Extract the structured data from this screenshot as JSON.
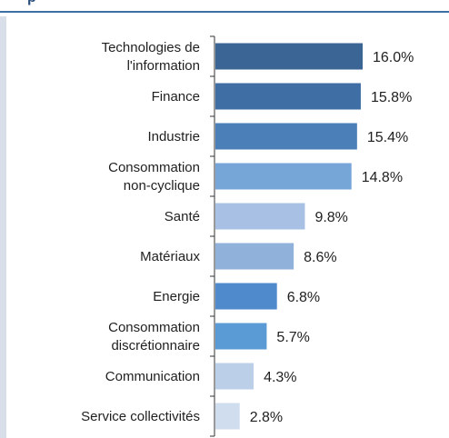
{
  "chart_data": {
    "type": "bar",
    "orientation": "horizontal",
    "categories": [
      "Technologies de l'information",
      "Finance",
      "Industrie",
      "Consommation non-cyclique",
      "Santé",
      "Matériaux",
      "Energie",
      "Consommation discrétionnaire",
      "Communication",
      "Service collectivités"
    ],
    "category_lines": [
      [
        "Technologies de",
        "l'information"
      ],
      [
        "Finance"
      ],
      [
        "Industrie"
      ],
      [
        "Consommation",
        "non-cyclique"
      ],
      [
        "Santé"
      ],
      [
        "Matériaux"
      ],
      [
        "Energie"
      ],
      [
        "Consommation",
        "discrétionnaire"
      ],
      [
        "Communication"
      ],
      [
        "Service collectivités"
      ]
    ],
    "values": [
      16.0,
      15.8,
      15.4,
      14.8,
      9.8,
      8.6,
      6.8,
      5.7,
      4.3,
      2.8
    ],
    "value_labels": [
      "16.0%",
      "15.8%",
      "15.4%",
      "14.8%",
      "9.8%",
      "8.6%",
      "6.8%",
      "5.7%",
      "4.3%",
      "2.8%"
    ],
    "bar_colors": [
      "#3b6594",
      "#3f6ea5",
      "#4a7fb8",
      "#76a5d8",
      "#a7c0e4",
      "#8fb1da",
      "#4f8acc",
      "#5b9bd5",
      "#bccfe8",
      "#d0ddee"
    ],
    "xlim": [
      0,
      16.0
    ],
    "grid": false,
    "legend": "none",
    "title": "",
    "xlabel": "",
    "ylabel": ""
  },
  "header": {
    "title_fragment": "p"
  },
  "colors": {
    "accent": "#3e6ea6",
    "text": "#1f1f1f",
    "axis": "#333333",
    "side_panel": "#d9dfe8"
  }
}
